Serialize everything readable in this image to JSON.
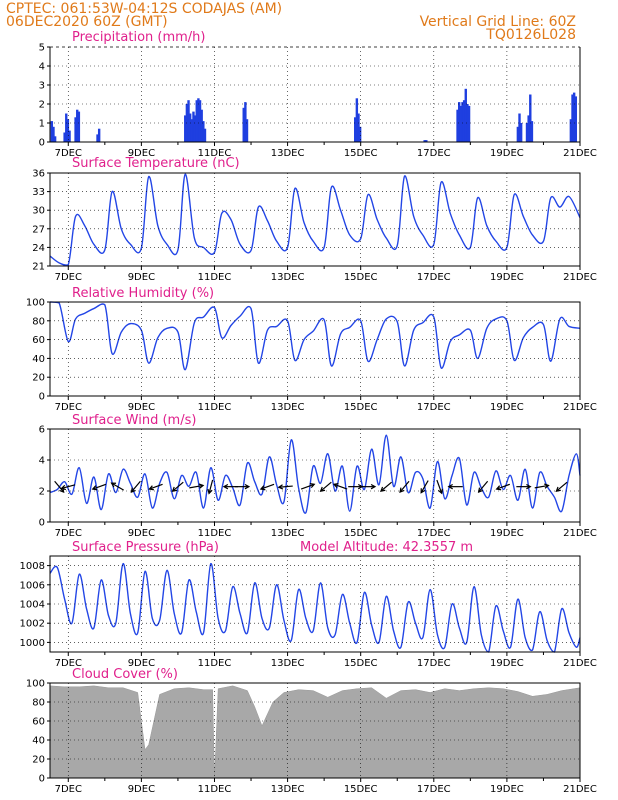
{
  "header": {
    "line1": "CPTEC:   061:53W-04:12S   CODAJAS (AM)",
    "line2": "06DEC2020 60Z (GMT)",
    "grid_line": "Vertical Grid Line: 60Z",
    "code": "TQ0126L028"
  },
  "chart_data": [
    {
      "type": "bar",
      "title": "Precipitation (mm/h)",
      "ylim": [
        0,
        5
      ],
      "yticks": [
        0,
        1,
        2,
        3,
        4,
        5
      ],
      "xticks": [
        "7DEC",
        "9DEC",
        "11DEC",
        "13DEC",
        "15DEC",
        "17DEC",
        "19DEC",
        "21DEC"
      ],
      "x_range_days": [
        6.5,
        21
      ],
      "bursts": [
        {
          "day": 6.55,
          "values": [
            1.1,
            0.8,
            0.3
          ]
        },
        {
          "day": 6.9,
          "values": [
            0.5,
            1.5,
            1.2,
            0.6
          ]
        },
        {
          "day": 7.2,
          "values": [
            1.3,
            1.7,
            1.6
          ]
        },
        {
          "day": 7.8,
          "values": [
            0.4,
            0.7
          ]
        },
        {
          "day": 10.2,
          "values": [
            1.4,
            2.0,
            2.2,
            1.5,
            1.2,
            1.6,
            1.4,
            2.2,
            2.3,
            2.2,
            1.7,
            1.1,
            0.7
          ]
        },
        {
          "day": 11.8,
          "values": [
            1.8,
            2.1,
            1.2
          ]
        },
        {
          "day": 14.85,
          "values": [
            1.3,
            2.3,
            1.5,
            0.8
          ]
        },
        {
          "day": 16.75,
          "values": [
            0.1,
            0.1
          ]
        },
        {
          "day": 17.65,
          "values": [
            1.7,
            2.1,
            1.9,
            2.1,
            2.2,
            2.8,
            2.0,
            1.9
          ]
        },
        {
          "day": 19.3,
          "values": [
            0.8,
            1.5,
            1.0
          ]
        },
        {
          "day": 19.55,
          "values": [
            1.0,
            1.4,
            2.5,
            1.1
          ]
        },
        {
          "day": 20.75,
          "values": [
            1.2,
            2.5,
            2.6,
            2.4
          ]
        }
      ]
    },
    {
      "type": "line",
      "title": "Surface Temperature (nC)",
      "ylim": [
        21,
        36
      ],
      "yticks": [
        21,
        24,
        27,
        30,
        33,
        36
      ],
      "xticks": [
        "7DEC",
        "9DEC",
        "11DEC",
        "13DEC",
        "15DEC",
        "17DEC",
        "19DEC",
        "21DEC"
      ],
      "x": [
        6.5,
        6.75,
        7.0,
        7.2,
        7.45,
        7.7,
        8.0,
        8.2,
        8.45,
        8.7,
        9.0,
        9.2,
        9.45,
        9.7,
        10.0,
        10.2,
        10.45,
        10.7,
        11.0,
        11.2,
        11.45,
        11.7,
        12.0,
        12.2,
        12.45,
        12.7,
        13.0,
        13.2,
        13.45,
        13.7,
        14.0,
        14.2,
        14.45,
        14.7,
        15.0,
        15.2,
        15.45,
        15.7,
        16.0,
        16.2,
        16.45,
        16.7,
        17.0,
        17.2,
        17.45,
        17.7,
        18.0,
        18.2,
        18.45,
        18.7,
        19.0,
        19.2,
        19.45,
        19.7,
        20.0,
        20.2,
        20.45,
        20.7,
        21.0
      ],
      "y": [
        22.6,
        21.5,
        21.2,
        29.0,
        27.5,
        24.5,
        23.6,
        33.0,
        27.0,
        24.5,
        23.9,
        35.4,
        27.5,
        24.5,
        23.6,
        35.8,
        25.5,
        24.0,
        23.2,
        29.5,
        28.5,
        24.5,
        23.5,
        30.5,
        28.3,
        25.0,
        24.0,
        33.5,
        28.0,
        25.0,
        24.0,
        33.7,
        30.0,
        26.0,
        25.4,
        32.5,
        28.5,
        25.5,
        24.3,
        35.5,
        29.0,
        26.0,
        24.5,
        34.5,
        29.5,
        26.0,
        24.0,
        32.0,
        27.5,
        25.0,
        24.0,
        32.5,
        29.0,
        26.0,
        25.0,
        32.0,
        30.5,
        32.2,
        28.8
      ]
    },
    {
      "type": "line",
      "title": "Relative Humidity (%)",
      "ylim": [
        0,
        100
      ],
      "yticks": [
        0,
        20,
        40,
        60,
        80,
        100
      ],
      "xticks": [
        "7DEC",
        "9DEC",
        "11DEC",
        "13DEC",
        "15DEC",
        "17DEC",
        "19DEC",
        "21DEC"
      ],
      "x": [
        6.5,
        6.75,
        7.0,
        7.2,
        7.45,
        7.7,
        8.0,
        8.2,
        8.45,
        8.7,
        9.0,
        9.2,
        9.45,
        9.7,
        10.0,
        10.2,
        10.45,
        10.7,
        11.0,
        11.2,
        11.45,
        11.7,
        12.0,
        12.2,
        12.45,
        12.7,
        13.0,
        13.2,
        13.45,
        13.7,
        14.0,
        14.2,
        14.45,
        14.7,
        15.0,
        15.2,
        15.45,
        15.7,
        16.0,
        16.2,
        16.45,
        16.7,
        17.0,
        17.2,
        17.45,
        17.7,
        18.0,
        18.2,
        18.45,
        18.7,
        19.0,
        19.2,
        19.45,
        19.7,
        20.0,
        20.2,
        20.45,
        20.7,
        21.0
      ],
      "y": [
        100,
        99,
        58,
        82,
        88,
        93,
        97,
        45,
        68,
        77,
        70,
        35,
        62,
        72,
        68,
        28,
        78,
        84,
        94,
        62,
        75,
        85,
        93,
        35,
        70,
        74,
        80,
        38,
        60,
        69,
        81,
        32,
        66,
        73,
        80,
        37,
        60,
        82,
        79,
        32,
        70,
        78,
        84,
        30,
        58,
        65,
        70,
        40,
        72,
        82,
        80,
        38,
        62,
        73,
        76,
        37,
        82,
        74,
        72
      ]
    },
    {
      "type": "line",
      "title": "Surface Wind (m/s)",
      "ylim": [
        0,
        6
      ],
      "yticks": [
        0,
        2,
        4,
        6
      ],
      "xticks": [
        "7DEC",
        "9DEC",
        "11DEC",
        "13DEC",
        "15DEC",
        "17DEC",
        "19DEC",
        "21DEC"
      ],
      "x": [
        6.5,
        6.7,
        6.9,
        7.1,
        7.3,
        7.5,
        7.7,
        7.9,
        8.1,
        8.3,
        8.5,
        8.7,
        8.9,
        9.1,
        9.3,
        9.5,
        9.7,
        9.9,
        10.1,
        10.3,
        10.5,
        10.7,
        10.9,
        11.1,
        11.3,
        11.5,
        11.7,
        11.9,
        12.1,
        12.3,
        12.5,
        12.7,
        12.9,
        13.1,
        13.3,
        13.5,
        13.7,
        13.9,
        14.1,
        14.3,
        14.5,
        14.7,
        14.9,
        15.1,
        15.3,
        15.5,
        15.7,
        15.9,
        16.1,
        16.3,
        16.5,
        16.7,
        16.9,
        17.1,
        17.3,
        17.5,
        17.7,
        17.9,
        18.1,
        18.3,
        18.5,
        18.7,
        18.9,
        19.1,
        19.3,
        19.5,
        19.7,
        19.9,
        20.1,
        20.3,
        20.5,
        20.7,
        20.9,
        21.0
      ],
      "y": [
        1.9,
        2.1,
        2.6,
        1.8,
        3.5,
        1.2,
        2.9,
        0.8,
        3.1,
        1.9,
        3.4,
        2.5,
        1.6,
        3.1,
        0.9,
        2.5,
        3.2,
        1.5,
        3.0,
        2.3,
        3.2,
        0.9,
        3.5,
        1.4,
        3.0,
        2.2,
        1.1,
        3.8,
        2.6,
        1.8,
        4.2,
        2.4,
        1.3,
        5.3,
        2.2,
        0.6,
        3.6,
        2.5,
        4.4,
        2.0,
        3.6,
        0.7,
        3.6,
        2.1,
        4.7,
        2.4,
        5.6,
        2.3,
        4.2,
        1.9,
        3.2,
        2.8,
        0.9,
        3.9,
        1.5,
        3.0,
        4.1,
        1.1,
        3.2,
        2.2,
        1.6,
        3.3,
        2.1,
        3.0,
        1.4,
        3.4,
        0.9,
        3.2,
        2.3,
        1.6,
        0.7,
        3.0,
        4.4,
        3.0
      ],
      "arrows": [
        {
          "day": 6.75,
          "angle": -50
        },
        {
          "day": 7.0,
          "angle": 195
        },
        {
          "day": 7.85,
          "angle": 200
        },
        {
          "day": 8.35,
          "angle": 150
        },
        {
          "day": 8.85,
          "angle": 230
        },
        {
          "day": 9.4,
          "angle": 200
        },
        {
          "day": 10.0,
          "angle": 220
        },
        {
          "day": 10.5,
          "angle": 10
        },
        {
          "day": 10.9,
          "angle": 255
        },
        {
          "day": 11.45,
          "angle": 180
        },
        {
          "day": 11.75,
          "angle": 0
        },
        {
          "day": 12.45,
          "angle": 200
        },
        {
          "day": 12.95,
          "angle": 185
        },
        {
          "day": 13.55,
          "angle": 20
        },
        {
          "day": 14.05,
          "angle": 220
        },
        {
          "day": 14.45,
          "angle": 160
        },
        {
          "day": 14.85,
          "angle": 0
        },
        {
          "day": 15.2,
          "angle": 0
        },
        {
          "day": 15.7,
          "angle": 220
        },
        {
          "day": 16.2,
          "angle": 230
        },
        {
          "day": 16.75,
          "angle": 240
        },
        {
          "day": 17.15,
          "angle": 290
        },
        {
          "day": 17.6,
          "angle": 180
        },
        {
          "day": 18.35,
          "angle": 230
        },
        {
          "day": 18.9,
          "angle": 200
        },
        {
          "day": 19.45,
          "angle": 0
        },
        {
          "day": 19.95,
          "angle": 10
        },
        {
          "day": 20.5,
          "angle": 220
        }
      ]
    },
    {
      "type": "line",
      "title": "Surface Pressure (hPa)",
      "annotation": "Model Altitude: 42.3557 m",
      "ylim": [
        999,
        1009
      ],
      "yticks": [
        1000,
        1002,
        1004,
        1006,
        1008
      ],
      "xticks": [
        "7DEC",
        "9DEC",
        "11DEC",
        "13DEC",
        "15DEC",
        "17DEC",
        "19DEC",
        "21DEC"
      ],
      "x": [
        6.5,
        6.7,
        6.9,
        7.1,
        7.3,
        7.5,
        7.7,
        7.9,
        8.1,
        8.3,
        8.5,
        8.7,
        8.9,
        9.1,
        9.3,
        9.5,
        9.7,
        9.9,
        10.1,
        10.3,
        10.5,
        10.7,
        10.9,
        11.1,
        11.3,
        11.5,
        11.7,
        11.9,
        12.1,
        12.3,
        12.5,
        12.7,
        12.9,
        13.1,
        13.3,
        13.5,
        13.7,
        13.9,
        14.1,
        14.3,
        14.5,
        14.7,
        14.9,
        15.1,
        15.3,
        15.5,
        15.7,
        15.9,
        16.1,
        16.3,
        16.5,
        16.7,
        16.9,
        17.1,
        17.3,
        17.5,
        17.7,
        17.9,
        18.1,
        18.3,
        18.5,
        18.7,
        18.9,
        19.1,
        19.3,
        19.5,
        19.7,
        19.9,
        20.1,
        20.3,
        20.5,
        20.7,
        20.9,
        21.0
      ],
      "y": [
        1007.2,
        1007.8,
        1004.5,
        1002.0,
        1007.1,
        1003.5,
        1001.5,
        1006.5,
        1002.8,
        1002.0,
        1008.2,
        1003.0,
        1001.0,
        1007.4,
        1002.5,
        1002.3,
        1007.5,
        1003.0,
        1001.0,
        1006.5,
        1003.2,
        1001.0,
        1008.2,
        1002.5,
        1001.2,
        1005.8,
        1003.0,
        1001.0,
        1006.2,
        1002.5,
        1001.5,
        1006.0,
        1002.3,
        1000.2,
        1005.5,
        1002.5,
        1001.2,
        1006.2,
        1001.5,
        1000.8,
        1005.0,
        1002.0,
        1000.0,
        1005.2,
        1001.8,
        1000.0,
        1004.8,
        1001.2,
        999.5,
        1004.2,
        1002.0,
        1000.5,
        1005.5,
        1000.8,
        999.5,
        1004.0,
        1001.5,
        1000.0,
        1005.8,
        1000.8,
        999.0,
        1003.8,
        1001.2,
        999.5,
        1004.5,
        1000.5,
        999.2,
        1003.2,
        1000.2,
        998.8,
        1003.5,
        1001.0,
        999.5,
        1000.5
      ]
    },
    {
      "type": "area",
      "title": "Cloud Cover (%)",
      "ylim": [
        0,
        100
      ],
      "yticks": [
        0,
        20,
        40,
        60,
        80,
        100
      ],
      "xticks": [
        "7DEC",
        "9DEC",
        "11DEC",
        "13DEC",
        "15DEC",
        "17DEC",
        "19DEC",
        "21DEC"
      ],
      "x": [
        6.5,
        6.9,
        7.3,
        7.7,
        8.1,
        8.5,
        8.9,
        9.1,
        9.2,
        9.5,
        9.9,
        10.3,
        10.7,
        10.95,
        11.0,
        11.1,
        11.5,
        11.9,
        12.1,
        12.3,
        12.6,
        12.9,
        13.3,
        13.7,
        14.1,
        14.5,
        14.9,
        15.3,
        15.7,
        16.1,
        16.5,
        16.9,
        17.3,
        17.7,
        18.1,
        18.5,
        18.9,
        19.3,
        19.7,
        20.1,
        20.5,
        21.0
      ],
      "y": [
        97,
        96,
        96,
        97,
        95,
        95,
        90,
        30,
        35,
        88,
        94,
        95,
        93,
        93,
        0,
        94,
        97,
        92,
        75,
        55,
        80,
        90,
        93,
        92,
        85,
        92,
        94,
        95,
        84,
        92,
        93,
        90,
        94,
        92,
        94,
        95,
        94,
        91,
        86,
        88,
        92,
        95
      ]
    }
  ]
}
